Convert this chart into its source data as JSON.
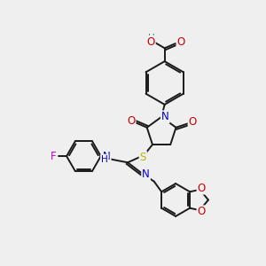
{
  "bg_color": "#efefef",
  "atom_colors": {
    "C": "#1a1a1a",
    "N": "#0000cc",
    "O": "#cc0000",
    "S": "#b8b800",
    "F": "#cc00cc",
    "H": "#008080"
  },
  "bond_color": "#1a1a1a",
  "bond_width": 1.4,
  "font_size": 8.5
}
